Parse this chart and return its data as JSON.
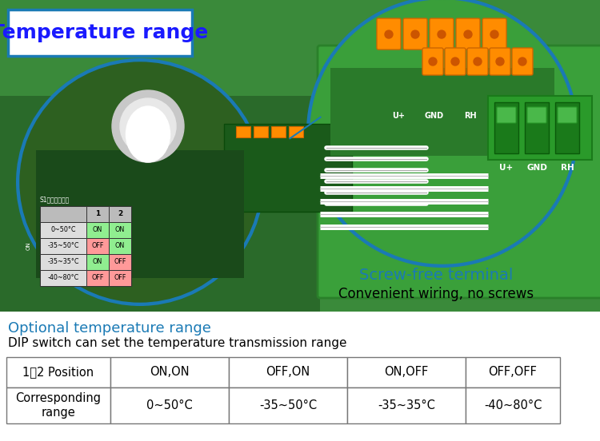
{
  "title_box_text": "Temperature range",
  "title_box_color": "#1a1aff",
  "title_box_border": "#1a7ab5",
  "optional_temp_text": "Optional temperature range",
  "optional_temp_color": "#1a7ab5",
  "dip_switch_text": "DIP switch can set the temperature transmission range",
  "dip_switch_color": "#000000",
  "screw_free_text": "Screw-free terminal",
  "screw_free_color": "#1a7ab5",
  "convenient_text": "Convenient wiring, no screws",
  "convenient_color": "#000000",
  "table_headers": [
    "1、2 Position",
    "ON,ON",
    "OFF,ON",
    "ON,OFF",
    "OFF,OFF"
  ],
  "table_row_label": "Corresponding\nrange",
  "table_row_values": [
    "0~50°C",
    "-35~50°C",
    "-35~35°C",
    "-40~80°C"
  ],
  "table_border_color": "#777777",
  "bg_color": "#ffffff",
  "photo_bg": "#3a8a3a",
  "pcb_dark": "#2a6a2a",
  "circle_border": "#1a7ab5",
  "circle_fill_left": "#2d6020",
  "circle_fill_right": "#3a9a3a",
  "orange_terminal": "#ff8c00",
  "green_terminal": "#4ab84a"
}
